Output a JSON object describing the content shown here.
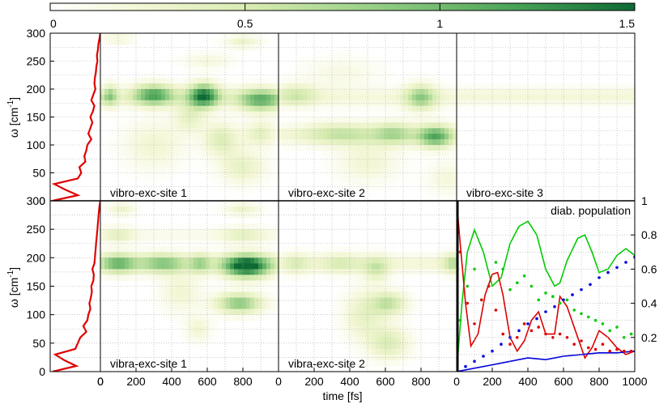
{
  "colorbar": {
    "colors": [
      "#ffffff",
      "#f4f7d6",
      "#d6ebb0",
      "#98cf87",
      "#4ea65a",
      "#0e6a35"
    ],
    "ticks": [
      "0",
      "0.5",
      "1",
      "1.5"
    ],
    "min": 0,
    "max": 1.5
  },
  "axes": {
    "xlabel": "time [fs]",
    "ylabel": "ω [cm",
    "ylabel_sup": "-1",
    "ylabel_end": "]",
    "omega_ticks": [
      "0",
      "50",
      "100",
      "150",
      "200",
      "250",
      "300"
    ],
    "time_ticks": [
      "0",
      "200",
      "400",
      "600",
      "800"
    ],
    "time_ticks_last": [
      "0",
      "200",
      "400",
      "600",
      "800",
      "1000"
    ],
    "pop_ticks": [
      "0.2",
      "0.4",
      "0.6",
      "0.8",
      "1"
    ]
  },
  "panels": {
    "vibro1": "vibro-exc-site 1",
    "vibro2": "vibro-exc-site 2",
    "vibro3": "vibro-exc-site 3",
    "vibra1": "vibra-exc-site 1",
    "vibra2": "vibra-exc-site 2",
    "pop": "diab. population"
  },
  "chart_data": [
    {
      "type": "line",
      "name": "spectrum-top",
      "xlabel": "",
      "ylabel": "ω [cm-1]",
      "ylim": [
        0,
        300
      ],
      "omega": [
        0,
        10,
        20,
        30,
        40,
        50,
        60,
        70,
        80,
        90,
        100,
        110,
        120,
        130,
        140,
        150,
        160,
        170,
        180,
        190,
        200,
        210,
        220,
        230,
        240,
        250,
        260,
        270,
        280,
        290,
        300
      ],
      "intensity": [
        0.05,
        0.55,
        0.3,
        0.08,
        0.55,
        0.62,
        0.58,
        0.7,
        0.68,
        0.72,
        0.74,
        0.82,
        0.76,
        0.8,
        0.84,
        0.8,
        0.85,
        0.88,
        0.82,
        0.86,
        0.9,
        0.88,
        0.89,
        0.91,
        0.92,
        0.94,
        0.93,
        0.95,
        0.96,
        0.98,
        1.0
      ]
    },
    {
      "type": "line",
      "name": "spectrum-bottom",
      "xlabel": "",
      "ylabel": "ω [cm-1]",
      "ylim": [
        0,
        300
      ],
      "omega": [
        0,
        10,
        20,
        30,
        40,
        50,
        60,
        70,
        80,
        90,
        100,
        110,
        120,
        130,
        140,
        150,
        160,
        170,
        180,
        190,
        200,
        210,
        220,
        230,
        240,
        250,
        260,
        270,
        280,
        290,
        300
      ],
      "intensity": [
        0.05,
        0.52,
        0.28,
        0.1,
        0.5,
        0.55,
        0.6,
        0.72,
        0.66,
        0.74,
        0.76,
        0.8,
        0.78,
        0.81,
        0.83,
        0.82,
        0.86,
        0.87,
        0.84,
        0.88,
        0.89,
        0.9,
        0.91,
        0.92,
        0.93,
        0.94,
        0.95,
        0.96,
        0.97,
        0.98,
        1.0
      ]
    },
    {
      "type": "heatmap",
      "panel": "vibro-exc-site 1",
      "xlim": [
        0,
        1000
      ],
      "ylim": [
        0,
        300
      ],
      "blobs": [
        {
          "t": 60,
          "w": 190,
          "dt": 25,
          "dw": 14,
          "v": 0.45
        },
        {
          "t": 300,
          "w": 190,
          "dt": 80,
          "dw": 13,
          "v": 1.0
        },
        {
          "t": 580,
          "w": 188,
          "dt": 60,
          "dw": 15,
          "v": 1.3
        },
        {
          "t": 900,
          "w": 180,
          "dt": 90,
          "dw": 14,
          "v": 0.9
        },
        {
          "t": 100,
          "w": 290,
          "dt": 60,
          "dw": 6,
          "v": 0.25
        },
        {
          "t": 800,
          "w": 285,
          "dt": 70,
          "dw": 8,
          "v": 0.3
        },
        {
          "t": 500,
          "w": 150,
          "dt": 60,
          "dw": 18,
          "v": 0.35
        },
        {
          "t": 680,
          "w": 110,
          "dt": 70,
          "dw": 20,
          "v": 0.45
        },
        {
          "t": 900,
          "w": 120,
          "dt": 60,
          "dw": 15,
          "v": 0.4
        },
        {
          "t": 800,
          "w": 60,
          "dt": 90,
          "dw": 20,
          "v": 0.35
        },
        {
          "t": 300,
          "w": 100,
          "dt": 120,
          "dw": 30,
          "v": 0.25
        },
        {
          "t": 600,
          "w": 250,
          "dt": 100,
          "dw": 10,
          "v": 0.18
        },
        {
          "t": 30,
          "w": 185,
          "dt": 40,
          "dw": 10,
          "v": 0.3
        }
      ],
      "bands": [
        {
          "w": 185,
          "dw": 12,
          "v": 0.25
        }
      ]
    },
    {
      "type": "heatmap",
      "panel": "vibro-exc-site 2",
      "xlim": [
        0,
        1000
      ],
      "ylim": [
        0,
        300
      ],
      "blobs": [
        {
          "t": 100,
          "w": 190,
          "dt": 80,
          "dw": 13,
          "v": 0.4
        },
        {
          "t": 350,
          "w": 120,
          "dt": 150,
          "dw": 14,
          "v": 0.45
        },
        {
          "t": 800,
          "w": 185,
          "dt": 60,
          "dw": 16,
          "v": 0.7
        },
        {
          "t": 880,
          "w": 115,
          "dt": 70,
          "dw": 14,
          "v": 1.0
        },
        {
          "t": 650,
          "w": 120,
          "dt": 80,
          "dw": 14,
          "v": 0.55
        },
        {
          "t": 500,
          "w": 70,
          "dt": 120,
          "dw": 25,
          "v": 0.25
        },
        {
          "t": 350,
          "w": 230,
          "dt": 150,
          "dw": 20,
          "v": 0.15
        },
        {
          "t": 950,
          "w": 40,
          "dt": 80,
          "dw": 20,
          "v": 0.2
        }
      ],
      "bands": [
        {
          "w": 185,
          "dw": 12,
          "v": 0.2
        },
        {
          "w": 118,
          "dw": 12,
          "v": 0.18
        }
      ]
    },
    {
      "type": "heatmap",
      "panel": "vibro-exc-site 3",
      "xlim": [
        0,
        1000
      ],
      "ylim": [
        0,
        300
      ],
      "blobs": [],
      "bands": [
        {
          "w": 187,
          "dw": 11,
          "v": 0.22
        }
      ]
    },
    {
      "type": "heatmap",
      "panel": "vibra-exc-site 1",
      "xlim": [
        0,
        1000
      ],
      "ylim": [
        0,
        300
      ],
      "blobs": [
        {
          "t": 100,
          "w": 190,
          "dt": 70,
          "dw": 12,
          "v": 0.8
        },
        {
          "t": 350,
          "w": 190,
          "dt": 90,
          "dw": 12,
          "v": 0.65
        },
        {
          "t": 820,
          "w": 185,
          "dt": 90,
          "dw": 14,
          "v": 1.5
        },
        {
          "t": 780,
          "w": 120,
          "dt": 90,
          "dw": 12,
          "v": 0.9
        },
        {
          "t": 560,
          "w": 190,
          "dt": 40,
          "dw": 12,
          "v": 0.5
        },
        {
          "t": 100,
          "w": 240,
          "dt": 60,
          "dw": 10,
          "v": 0.3
        },
        {
          "t": 800,
          "w": 240,
          "dt": 80,
          "dw": 10,
          "v": 0.3
        },
        {
          "t": 120,
          "w": 285,
          "dt": 50,
          "dw": 8,
          "v": 0.3
        },
        {
          "t": 800,
          "w": 285,
          "dt": 70,
          "dw": 8,
          "v": 0.3
        },
        {
          "t": 450,
          "w": 140,
          "dt": 80,
          "dw": 25,
          "v": 0.25
        },
        {
          "t": 550,
          "w": 75,
          "dt": 50,
          "dw": 15,
          "v": 0.25
        }
      ],
      "bands": [
        {
          "w": 190,
          "dw": 11,
          "v": 0.3
        },
        {
          "w": 240,
          "dw": 8,
          "v": 0.12
        }
      ]
    },
    {
      "type": "heatmap",
      "panel": "vibra-exc-site 2",
      "xlim": [
        0,
        1000
      ],
      "ylim": [
        0,
        300
      ],
      "blobs": [
        {
          "t": 550,
          "w": 180,
          "dt": 50,
          "dw": 15,
          "v": 0.45
        },
        {
          "t": 620,
          "w": 120,
          "dt": 70,
          "dw": 14,
          "v": 0.6
        },
        {
          "t": 620,
          "w": 50,
          "dt": 80,
          "dw": 20,
          "v": 0.45
        },
        {
          "t": 980,
          "w": 190,
          "dt": 40,
          "dw": 12,
          "v": 0.5
        },
        {
          "t": 350,
          "w": 190,
          "dt": 80,
          "dw": 12,
          "v": 0.3
        },
        {
          "t": 480,
          "w": 100,
          "dt": 80,
          "dw": 30,
          "v": 0.35
        },
        {
          "t": 100,
          "w": 190,
          "dt": 50,
          "dw": 12,
          "v": 0.3
        }
      ],
      "bands": [
        {
          "w": 190,
          "dw": 11,
          "v": 0.22
        }
      ]
    },
    {
      "type": "line",
      "panel": "diab. population",
      "xlim": [
        0,
        1000
      ],
      "ylim": [
        0,
        1
      ],
      "series": [
        {
          "name": "",
          "style": "line",
          "color": "#00cc00",
          "x": [
            0,
            30,
            60,
            100,
            150,
            200,
            250,
            300,
            350,
            400,
            450,
            500,
            550,
            580,
            620,
            680,
            720,
            760,
            800,
            850,
            900,
            950,
            1000
          ],
          "y": [
            0,
            0.4,
            0.7,
            0.83,
            0.7,
            0.5,
            0.55,
            0.75,
            0.85,
            0.88,
            0.8,
            0.6,
            0.5,
            0.52,
            0.65,
            0.78,
            0.8,
            0.7,
            0.58,
            0.6,
            0.68,
            0.72,
            0.68
          ]
        },
        {
          "name": "",
          "style": "line",
          "color": "#dd0000",
          "x": [
            0,
            20,
            50,
            80,
            120,
            160,
            200,
            230,
            260,
            300,
            340,
            380,
            420,
            460,
            500,
            550,
            580,
            620,
            680,
            720,
            760,
            800,
            850,
            900,
            950,
            1000
          ],
          "y": [
            1,
            0.75,
            0.4,
            0.15,
            0.22,
            0.45,
            0.57,
            0.58,
            0.45,
            0.2,
            0.12,
            0.18,
            0.3,
            0.35,
            0.22,
            0.22,
            0.44,
            0.38,
            0.2,
            0.08,
            0.14,
            0.24,
            0.2,
            0.14,
            0.1,
            0.12
          ]
        },
        {
          "name": "",
          "style": "line",
          "color": "#0000dd",
          "x": [
            0,
            50,
            100,
            200,
            300,
            400,
            500,
            600,
            700,
            800,
            900,
            1000
          ],
          "y": [
            0,
            0.01,
            0.02,
            0.04,
            0.06,
            0.08,
            0.07,
            0.09,
            0.1,
            0.11,
            0.11,
            0.12
          ]
        },
        {
          "name": "",
          "style": "dots",
          "color": "#00cc00",
          "x": [
            20,
            60,
            100,
            140,
            180,
            220,
            260,
            300,
            340,
            380,
            420,
            460,
            500,
            540,
            580,
            620,
            660,
            700,
            740,
            780,
            820,
            860,
            900,
            940,
            980
          ],
          "y": [
            0.3,
            0.5,
            0.6,
            0.42,
            0.5,
            0.64,
            0.6,
            0.48,
            0.52,
            0.56,
            0.5,
            0.42,
            0.46,
            0.44,
            0.4,
            0.42,
            0.36,
            0.34,
            0.32,
            0.3,
            0.28,
            0.24,
            0.26,
            0.2,
            0.22
          ]
        },
        {
          "name": "",
          "style": "dots",
          "color": "#dd0000",
          "x": [
            20,
            60,
            100,
            140,
            180,
            220,
            260,
            300,
            340,
            380,
            420,
            460,
            500,
            540,
            580,
            620,
            660,
            700,
            740,
            780,
            820,
            860,
            900,
            940,
            980
          ],
          "y": [
            0.7,
            0.4,
            0.28,
            0.42,
            0.5,
            0.36,
            0.22,
            0.16,
            0.2,
            0.28,
            0.24,
            0.26,
            0.22,
            0.2,
            0.22,
            0.2,
            0.16,
            0.18,
            0.14,
            0.13,
            0.16,
            0.12,
            0.13,
            0.12,
            0.12
          ]
        },
        {
          "name": "",
          "style": "dots",
          "color": "#0000dd",
          "x": [
            0,
            50,
            100,
            150,
            200,
            250,
            300,
            350,
            400,
            450,
            500,
            550,
            600,
            650,
            700,
            750,
            800,
            850,
            900,
            950,
            1000
          ],
          "y": [
            0,
            0.03,
            0.06,
            0.09,
            0.12,
            0.16,
            0.2,
            0.24,
            0.28,
            0.31,
            0.35,
            0.38,
            0.42,
            0.45,
            0.48,
            0.51,
            0.55,
            0.58,
            0.61,
            0.64,
            0.67
          ]
        }
      ]
    }
  ]
}
